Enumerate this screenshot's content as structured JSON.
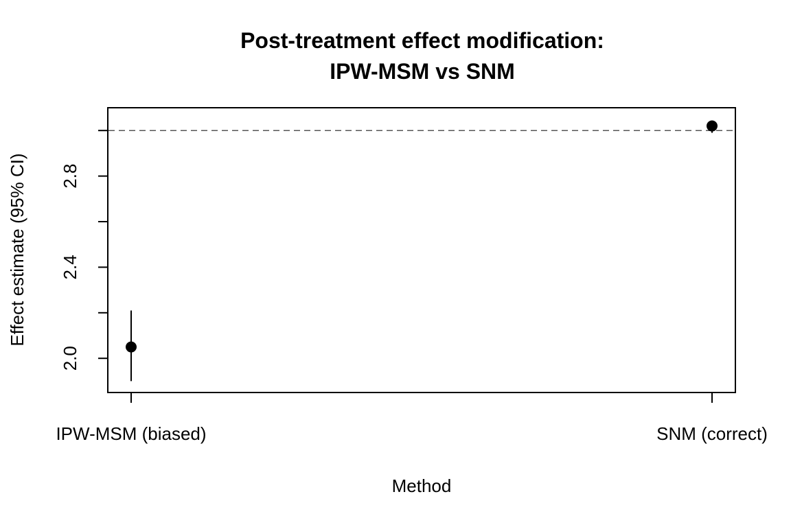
{
  "chart_data": {
    "type": "scatter",
    "title_lines": [
      "Post-treatment effect modification:",
      "IPW-MSM vs SNM"
    ],
    "xlabel": "Method",
    "ylabel": "Effect estimate (95% CI)",
    "categories": [
      "IPW-MSM (biased)",
      "SNM (correct)"
    ],
    "points": [
      {
        "category": "IPW-MSM (biased)",
        "estimate": 2.05,
        "ci_lower": 1.9,
        "ci_upper": 2.21
      },
      {
        "category": "SNM (correct)",
        "estimate": 3.02,
        "ci_lower": 2.99,
        "ci_upper": 3.04
      }
    ],
    "y_ticks": [
      2.0,
      2.2,
      2.4,
      2.6,
      2.8,
      3.0
    ],
    "y_tick_labels": [
      {
        "value": 2.0,
        "label": "2.0"
      },
      {
        "value": 2.4,
        "label": "2.4"
      },
      {
        "value": 2.8,
        "label": "2.8"
      }
    ],
    "ylim": [
      1.85,
      3.1
    ],
    "reference_line": {
      "y": 3.0,
      "style": "dashed",
      "color": "#555555"
    },
    "point_color": "#000000",
    "grid": false,
    "legend": "none"
  }
}
